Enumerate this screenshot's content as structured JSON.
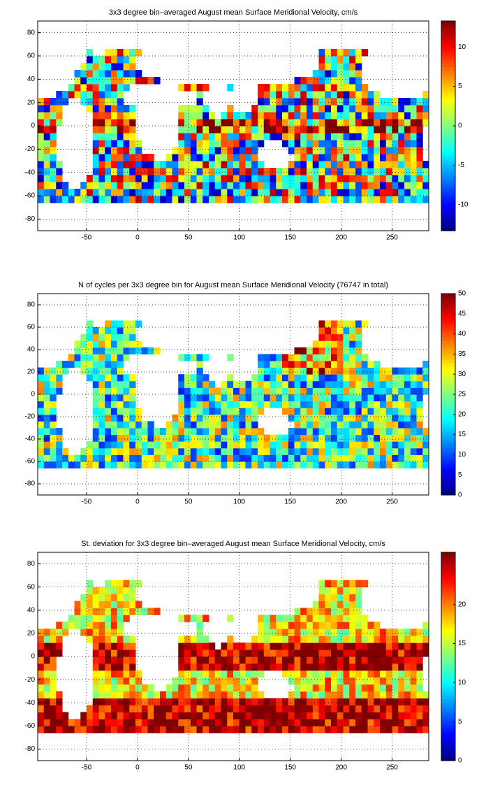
{
  "chart_data": [
    {
      "type": "heatmap",
      "title": "3x3 degree bin–averaged August mean Surface Meridional Velocity, cm/s",
      "xlim": [
        -98,
        286
      ],
      "xticks": [
        -50,
        0,
        50,
        100,
        150,
        200,
        250
      ],
      "ylim": [
        -90,
        90
      ],
      "yticks": [
        -80,
        -60,
        -40,
        -20,
        0,
        20,
        40,
        60,
        80
      ],
      "clim": [
        -13.3,
        13.3
      ],
      "cticks": [
        -10,
        -5,
        0,
        5,
        10
      ],
      "colormap": "jet",
      "grid": true
    },
    {
      "type": "heatmap",
      "title": "N of cycles per 3x3 degree bin for August mean Surface Meridional Velocity (76747 in total)",
      "xlim": [
        -98,
        286
      ],
      "xticks": [
        -50,
        0,
        50,
        100,
        150,
        200,
        250
      ],
      "ylim": [
        -90,
        90
      ],
      "yticks": [
        -80,
        -60,
        -40,
        -20,
        0,
        20,
        40,
        60,
        80
      ],
      "clim": [
        0,
        50
      ],
      "cticks": [
        0,
        5,
        10,
        15,
        20,
        25,
        30,
        35,
        40,
        45,
        50
      ],
      "colormap": "jet",
      "grid": true
    },
    {
      "type": "heatmap",
      "title": "St. deviation for 3x3 degree bin–averaged August mean Surface Meridional Velocity, cm/s",
      "xlim": [
        -98,
        286
      ],
      "xticks": [
        -50,
        0,
        50,
        100,
        150,
        200,
        250
      ],
      "ylim": [
        -90,
        90
      ],
      "yticks": [
        -80,
        -60,
        -40,
        -20,
        0,
        20,
        40,
        60,
        80
      ],
      "clim": [
        0,
        26.7
      ],
      "cticks": [
        0,
        5,
        10,
        15,
        20
      ],
      "colormap": "jet",
      "grid": true
    }
  ]
}
